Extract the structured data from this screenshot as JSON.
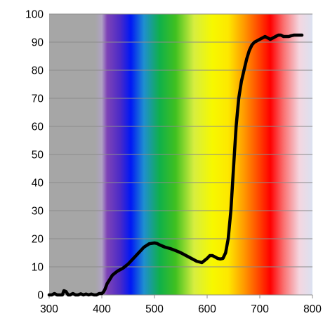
{
  "chart_data": {
    "type": "line",
    "title": "",
    "xlabel": "",
    "ylabel": "",
    "xlim": [
      300,
      800
    ],
    "ylim": [
      0,
      100
    ],
    "x_ticks": [
      {
        "value": 300,
        "label": "300"
      },
      {
        "value": 400,
        "label": "400"
      },
      {
        "value": 500,
        "label": "500"
      },
      {
        "value": 600,
        "label": "600"
      },
      {
        "value": 700,
        "label": "700"
      },
      {
        "value": 800,
        "label": "800"
      }
    ],
    "y_ticks": [
      {
        "value": 0,
        "label": "0"
      },
      {
        "value": 10,
        "label": "10"
      },
      {
        "value": 20,
        "label": "20"
      },
      {
        "value": 30,
        "label": "30"
      },
      {
        "value": 40,
        "label": "40"
      },
      {
        "value": 50,
        "label": "50"
      },
      {
        "value": 60,
        "label": "60"
      },
      {
        "value": 70,
        "label": "70"
      },
      {
        "value": 80,
        "label": "80"
      },
      {
        "value": 90,
        "label": "90"
      },
      {
        "value": 100,
        "label": "100"
      }
    ],
    "grid": true,
    "legend": "none",
    "background": "visible-spectrum gradient (grey below 390, violet-blue-green-yellow-orange-red, light blue-grey above 760)",
    "line_color": "#000000",
    "series": [
      {
        "x": [
          300,
          305,
          310,
          315,
          320,
          325,
          328,
          332,
          336,
          340,
          345,
          350,
          355,
          360,
          365,
          370,
          375,
          380,
          385,
          390,
          395,
          400,
          403,
          406,
          410,
          415,
          420,
          425,
          430,
          440,
          450,
          460,
          470,
          480,
          490,
          500,
          505,
          510,
          520,
          530,
          540,
          550,
          560,
          570,
          580,
          590,
          600,
          605,
          610,
          615,
          620,
          625,
          630,
          635,
          640,
          645,
          650,
          655,
          660,
          665,
          670,
          675,
          680,
          685,
          690,
          695,
          700,
          705,
          710,
          715,
          720,
          725,
          730,
          735,
          740,
          745,
          750,
          755,
          760,
          765,
          770,
          775,
          780
        ],
        "y": [
          0,
          0,
          0.5,
          0,
          0,
          0,
          1.5,
          1.2,
          0,
          0,
          0.5,
          0,
          0,
          0.4,
          0,
          0.3,
          0,
          0.3,
          0,
          0,
          0.5,
          0.5,
          1,
          2,
          4,
          5.5,
          7,
          7.8,
          8.5,
          9.5,
          11,
          13,
          15,
          17,
          18.2,
          18.5,
          18.3,
          17.8,
          17,
          16.5,
          15.8,
          15,
          14,
          13,
          12,
          11.5,
          13,
          14,
          14,
          13.5,
          13,
          12.8,
          13,
          15,
          20,
          30,
          45,
          60,
          70,
          76,
          80,
          84,
          87,
          89,
          90,
          90.5,
          91,
          91.5,
          92,
          91.5,
          91,
          91.5,
          92,
          92.5,
          92.5,
          92,
          92,
          92,
          92.3,
          92.5,
          92.5,
          92.5,
          92.5
        ]
      }
    ]
  }
}
